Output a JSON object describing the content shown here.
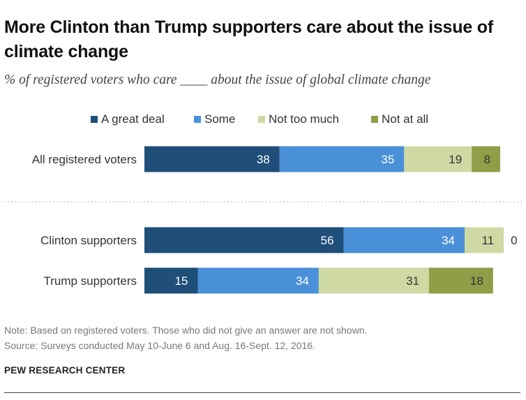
{
  "header": {
    "title": "More Clinton than Trump supporters care about the issue of climate change",
    "subtitle": "% of registered voters who care ____ about the issue of global climate change"
  },
  "chart_data": {
    "type": "bar",
    "orientation": "horizontal",
    "stacked": true,
    "categories": [
      "All registered voters",
      "Clinton supporters",
      "Trump supporters"
    ],
    "series": [
      {
        "name": "A great deal",
        "values": [
          38,
          56,
          15
        ],
        "color": "#1f4e79"
      },
      {
        "name": "Some",
        "values": [
          35,
          34,
          34
        ],
        "color": "#4a90d9"
      },
      {
        "name": "Not too much",
        "values": [
          19,
          11,
          31
        ],
        "color": "#cfd9a3"
      },
      {
        "name": "Not at all",
        "values": [
          8,
          0,
          18
        ],
        "color": "#8f9e47"
      }
    ],
    "legend_position": "top",
    "grid": false,
    "xlim": [
      0,
      100
    ],
    "data_labels": true,
    "group_separator_after": "All registered voters"
  },
  "footer": {
    "note": "Note: Based on registered voters. Those who did not give an answer are not shown.",
    "source": "Source: Surveys conducted May 10-June 6 and Aug. 16-Sept. 12, 2016.",
    "brand": "PEW RESEARCH CENTER"
  }
}
